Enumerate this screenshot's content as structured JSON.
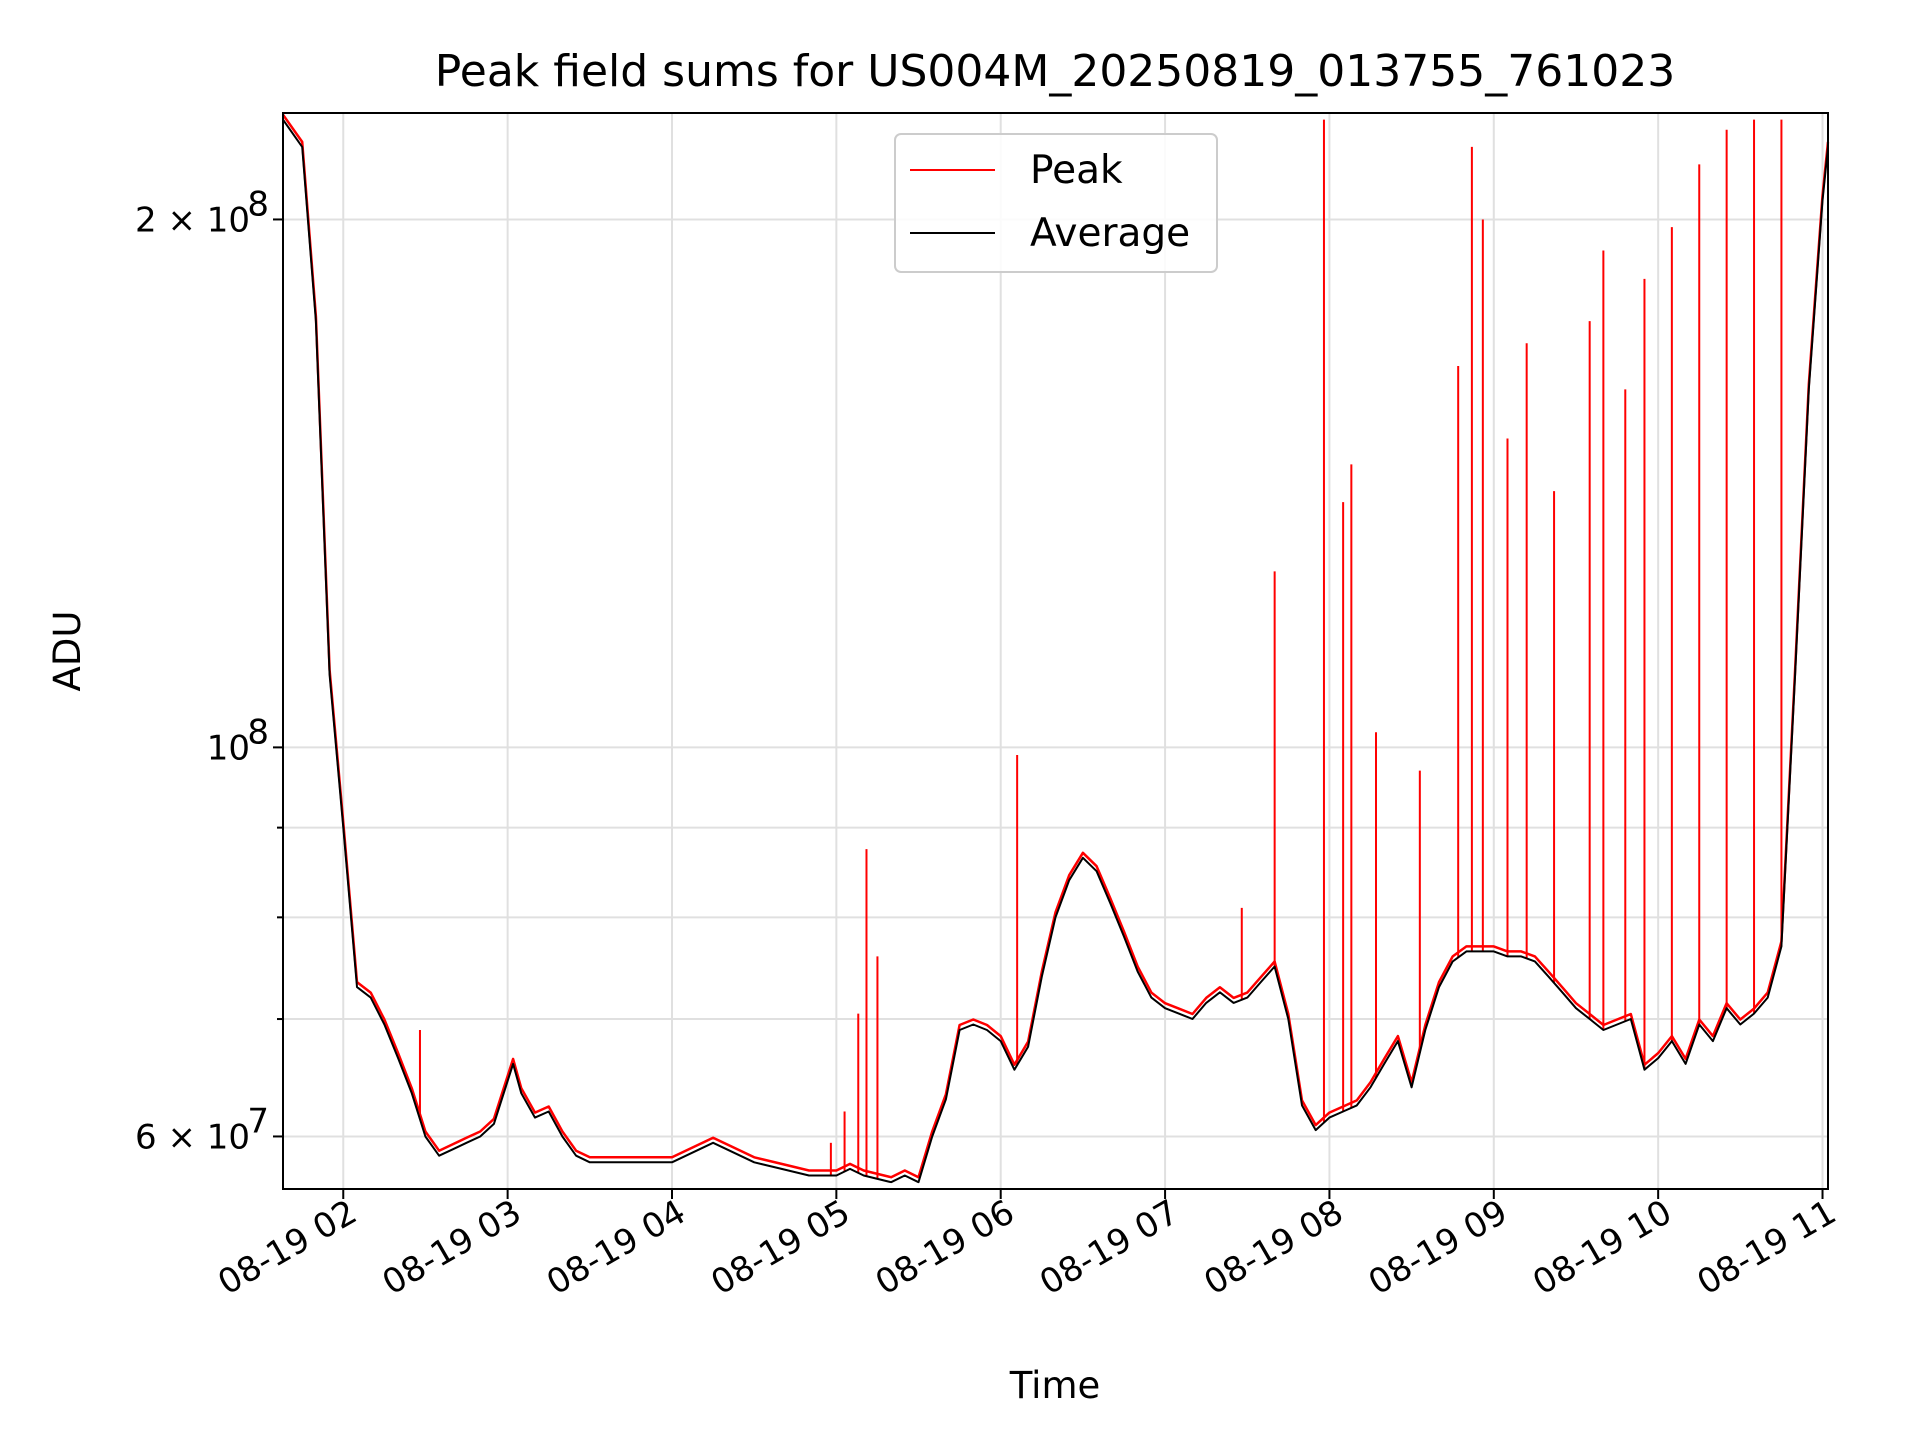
{
  "chart_data": {
    "type": "line",
    "title": "Peak field sums for US004M_20250819_013755_761023",
    "xlabel": "Time",
    "ylabel": "ADU",
    "yscale": "log",
    "xlim": [
      "2025-08-19 01:38",
      "2025-08-19 11:02"
    ],
    "ylim": [
      56000000,
      230000000
    ],
    "grid": true,
    "legend_position": "top-center",
    "x_ticks": [
      {
        "value": "2025-08-19 02:00",
        "label": "08-19 02"
      },
      {
        "value": "2025-08-19 03:00",
        "label": "08-19 03"
      },
      {
        "value": "2025-08-19 04:00",
        "label": "08-19 04"
      },
      {
        "value": "2025-08-19 05:00",
        "label": "08-19 05"
      },
      {
        "value": "2025-08-19 06:00",
        "label": "08-19 06"
      },
      {
        "value": "2025-08-19 07:00",
        "label": "08-19 07"
      },
      {
        "value": "2025-08-19 08:00",
        "label": "08-19 08"
      },
      {
        "value": "2025-08-19 09:00",
        "label": "08-19 09"
      },
      {
        "value": "2025-08-19 10:00",
        "label": "08-19 10"
      },
      {
        "value": "2025-08-19 11:00",
        "label": "08-19 11"
      }
    ],
    "y_major_ticks": [
      {
        "value": 60000000,
        "label_mant": "6 × 10",
        "label_exp": "7"
      },
      {
        "value": 100000000,
        "label_mant": "10",
        "label_exp": "8"
      },
      {
        "value": 200000000,
        "label_mant": "2 × 10",
        "label_exp": "8"
      }
    ],
    "y_minor_ticks": [
      70000000,
      80000000,
      90000000
    ],
    "series": [
      {
        "name": "Average",
        "color": "#000000",
        "x": [
          "2025-08-19 01:38",
          "2025-08-19 01:45",
          "2025-08-19 01:50",
          "2025-08-19 01:55",
          "2025-08-19 02:00",
          "2025-08-19 02:05",
          "2025-08-19 02:10",
          "2025-08-19 02:15",
          "2025-08-19 02:20",
          "2025-08-19 02:25",
          "2025-08-19 02:30",
          "2025-08-19 02:35",
          "2025-08-19 02:40",
          "2025-08-19 02:45",
          "2025-08-19 02:50",
          "2025-08-19 02:55",
          "2025-08-19 03:02",
          "2025-08-19 03:05",
          "2025-08-19 03:10",
          "2025-08-19 03:15",
          "2025-08-19 03:20",
          "2025-08-19 03:25",
          "2025-08-19 03:30",
          "2025-08-19 03:35",
          "2025-08-19 03:40",
          "2025-08-19 03:45",
          "2025-08-19 03:50",
          "2025-08-19 04:00",
          "2025-08-19 04:10",
          "2025-08-19 04:15",
          "2025-08-19 04:20",
          "2025-08-19 04:30",
          "2025-08-19 04:40",
          "2025-08-19 04:50",
          "2025-08-19 05:00",
          "2025-08-19 05:05",
          "2025-08-19 05:10",
          "2025-08-19 05:20",
          "2025-08-19 05:25",
          "2025-08-19 05:30",
          "2025-08-19 05:35",
          "2025-08-19 05:40",
          "2025-08-19 05:45",
          "2025-08-19 05:50",
          "2025-08-19 05:55",
          "2025-08-19 06:00",
          "2025-08-19 06:05",
          "2025-08-19 06:10",
          "2025-08-19 06:15",
          "2025-08-19 06:20",
          "2025-08-19 06:25",
          "2025-08-19 06:30",
          "2025-08-19 06:35",
          "2025-08-19 06:40",
          "2025-08-19 06:45",
          "2025-08-19 06:50",
          "2025-08-19 06:55",
          "2025-08-19 07:00",
          "2025-08-19 07:05",
          "2025-08-19 07:10",
          "2025-08-19 07:15",
          "2025-08-19 07:20",
          "2025-08-19 07:25",
          "2025-08-19 07:30",
          "2025-08-19 07:35",
          "2025-08-19 07:40",
          "2025-08-19 07:45",
          "2025-08-19 07:50",
          "2025-08-19 07:55",
          "2025-08-19 08:00",
          "2025-08-19 08:05",
          "2025-08-19 08:10",
          "2025-08-19 08:15",
          "2025-08-19 08:20",
          "2025-08-19 08:25",
          "2025-08-19 08:30",
          "2025-08-19 08:35",
          "2025-08-19 08:40",
          "2025-08-19 08:45",
          "2025-08-19 08:50",
          "2025-08-19 08:55",
          "2025-08-19 09:00",
          "2025-08-19 09:05",
          "2025-08-19 09:10",
          "2025-08-19 09:15",
          "2025-08-19 09:20",
          "2025-08-19 09:25",
          "2025-08-19 09:30",
          "2025-08-19 09:35",
          "2025-08-19 09:40",
          "2025-08-19 09:45",
          "2025-08-19 09:50",
          "2025-08-19 09:55",
          "2025-08-19 10:00",
          "2025-08-19 10:05",
          "2025-08-19 10:10",
          "2025-08-19 10:15",
          "2025-08-19 10:20",
          "2025-08-19 10:25",
          "2025-08-19 10:30",
          "2025-08-19 10:35",
          "2025-08-19 10:40",
          "2025-08-19 10:45",
          "2025-08-19 10:50",
          "2025-08-19 10:55",
          "2025-08-19 11:00",
          "2025-08-19 11:02"
        ],
        "values": [
          228000000,
          220000000,
          175000000,
          110000000,
          90000000,
          73000000,
          72000000,
          69500000,
          66500000,
          63500000,
          60000000,
          58500000,
          59000000,
          59500000,
          60000000,
          61000000,
          66000000,
          63500000,
          61500000,
          62000000,
          60000000,
          58500000,
          58000000,
          58000000,
          58000000,
          58000000,
          58000000,
          58000000,
          59000000,
          59500000,
          59000000,
          58000000,
          57500000,
          57000000,
          57000000,
          57500000,
          57000000,
          56500000,
          57000000,
          56500000,
          60000000,
          63000000,
          69000000,
          69500000,
          69000000,
          68000000,
          65500000,
          67500000,
          74000000,
          80000000,
          84000000,
          86500000,
          85000000,
          81500000,
          78000000,
          74500000,
          72000000,
          71000000,
          70500000,
          70000000,
          71500000,
          72500000,
          71500000,
          72000000,
          73500000,
          75000000,
          70000000,
          62500000,
          60500000,
          61500000,
          62000000,
          62500000,
          64000000,
          66000000,
          68000000,
          64000000,
          69000000,
          73000000,
          75500000,
          76500000,
          76500000,
          76500000,
          76000000,
          76000000,
          75500000,
          74000000,
          72500000,
          71000000,
          70000000,
          69000000,
          69500000,
          70000000,
          65500000,
          66500000,
          68000000,
          66000000,
          69500000,
          68000000,
          71000000,
          69500000,
          70500000,
          72000000,
          77000000,
          110000000,
          160000000,
          205000000,
          220000000
        ]
      },
      {
        "name": "Peak",
        "color": "#ff0000",
        "values_source": "average_plus_spikes",
        "spikes": [
          {
            "x": "2025-08-19 02:28",
            "value": 69000000
          },
          {
            "x": "2025-08-19 04:58",
            "value": 59500000
          },
          {
            "x": "2025-08-19 05:03",
            "value": 62000000
          },
          {
            "x": "2025-08-19 05:08",
            "value": 70500000
          },
          {
            "x": "2025-08-19 05:11",
            "value": 87500000
          },
          {
            "x": "2025-08-19 05:15",
            "value": 76000000
          },
          {
            "x": "2025-08-19 06:06",
            "value": 99000000
          },
          {
            "x": "2025-08-19 07:28",
            "value": 81000000
          },
          {
            "x": "2025-08-19 07:40",
            "value": 126000000
          },
          {
            "x": "2025-08-19 07:58",
            "value": 228000000
          },
          {
            "x": "2025-08-19 08:05",
            "value": 138000000
          },
          {
            "x": "2025-08-19 08:08",
            "value": 145000000
          },
          {
            "x": "2025-08-19 08:17",
            "value": 102000000
          },
          {
            "x": "2025-08-19 08:33",
            "value": 97000000
          },
          {
            "x": "2025-08-19 08:47",
            "value": 165000000
          },
          {
            "x": "2025-08-19 08:52",
            "value": 220000000
          },
          {
            "x": "2025-08-19 08:56",
            "value": 200000000
          },
          {
            "x": "2025-08-19 09:05",
            "value": 150000000
          },
          {
            "x": "2025-08-19 09:12",
            "value": 170000000
          },
          {
            "x": "2025-08-19 09:22",
            "value": 140000000
          },
          {
            "x": "2025-08-19 09:35",
            "value": 175000000
          },
          {
            "x": "2025-08-19 09:40",
            "value": 192000000
          },
          {
            "x": "2025-08-19 09:48",
            "value": 160000000
          },
          {
            "x": "2025-08-19 09:55",
            "value": 185000000
          },
          {
            "x": "2025-08-19 10:05",
            "value": 198000000
          },
          {
            "x": "2025-08-19 10:15",
            "value": 215000000
          },
          {
            "x": "2025-08-19 10:25",
            "value": 225000000
          },
          {
            "x": "2025-08-19 10:35",
            "value": 228000000
          },
          {
            "x": "2025-08-19 10:45",
            "value": 228000000
          }
        ]
      }
    ]
  }
}
